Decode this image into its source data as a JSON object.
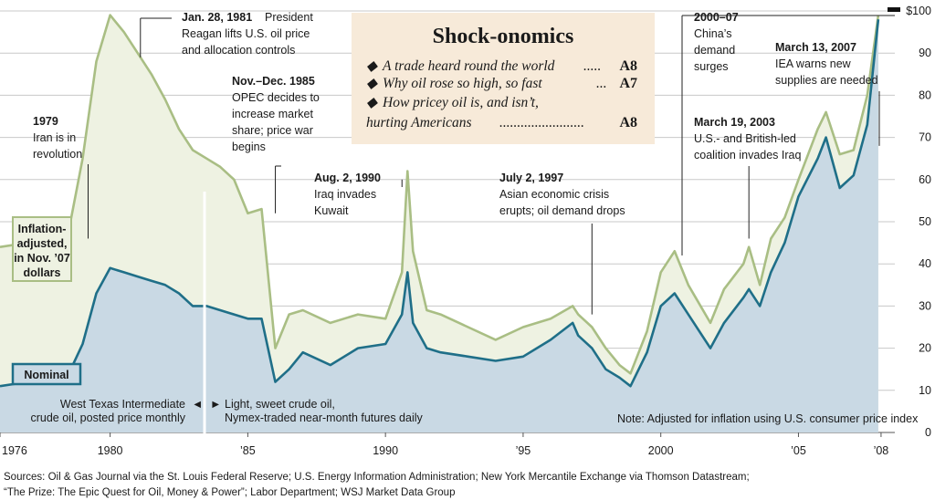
{
  "colors": {
    "nominal_fill": "#c9d9e4",
    "nominal_line": "#1f6f88",
    "inflation_fill": "#eef2e2",
    "inflation_line": "#a9be84",
    "box_bg": "#f7ead9",
    "grid": "#c8c8c8"
  },
  "sidebar_box": {
    "title": "Shock-onomics",
    "items": [
      {
        "bullet": "◆",
        "text": "A trade heard round the world",
        "dots": ".....",
        "page": "A8"
      },
      {
        "bullet": "◆",
        "text": "Why oil rose so high, so fast",
        "dots": "...",
        "page": "A7"
      },
      {
        "bullet": "◆",
        "text": "How pricey oil is, and isn’t,",
        "dots": "",
        "page": ""
      },
      {
        "bullet": "",
        "text": "hurting Americans",
        "dots": "........................",
        "page": "A8"
      }
    ]
  },
  "chart_data": {
    "type": "line",
    "title": "",
    "xlabel": "",
    "ylabel": "",
    "ylim": [
      0,
      100
    ],
    "xlim": [
      1976,
      2008.5
    ],
    "grid": true,
    "y_ticks": [
      "0",
      "10",
      "20",
      "30",
      "40",
      "50",
      "60",
      "70",
      "80",
      "90",
      "$100"
    ],
    "x_ticks": [
      "1976",
      "1980",
      "’85",
      "1990",
      "’95",
      "2000",
      "’05",
      "’08"
    ],
    "series": [
      {
        "name": "Inflation-adjusted, in Nov. ’07 dollars",
        "x": [
          1976,
          1977,
          1978,
          1978.5,
          1979,
          1979.5,
          1980,
          1980.5,
          1981,
          1981.5,
          1982,
          1982.5,
          1983,
          1983.5,
          1984,
          1984.5,
          1985,
          1985.5,
          1986,
          1986.5,
          1987,
          1988,
          1989,
          1990,
          1990.6,
          1990.8,
          1991,
          1991.5,
          1992,
          1993,
          1994,
          1995,
          1996,
          1996.8,
          1997,
          1997.5,
          1998,
          1998.5,
          1998.9,
          1999.5,
          2000,
          2000.5,
          2001,
          2001.8,
          2002.3,
          2003,
          2003.2,
          2003.6,
          2004,
          2004.5,
          2005,
          2005.7,
          2006,
          2006.5,
          2007,
          2007.5,
          2007.9
        ],
        "values": [
          44,
          45,
          45,
          48,
          65,
          88,
          99,
          95,
          90,
          85,
          79,
          72,
          67,
          65,
          63,
          60,
          52,
          53,
          20,
          28,
          29,
          26,
          28,
          27,
          38,
          62,
          43,
          29,
          28,
          25,
          22,
          25,
          27,
          30,
          28,
          25,
          20,
          16,
          14,
          24,
          38,
          43,
          35,
          26,
          34,
          40,
          44,
          35,
          46,
          51,
          60,
          72,
          76,
          66,
          67,
          80,
          99
        ]
      },
      {
        "name": "Nominal",
        "x": [
          1976,
          1977,
          1978,
          1978.5,
          1979,
          1979.5,
          1980,
          1980.5,
          1981,
          1981.5,
          1982,
          1982.5,
          1983,
          1983.5,
          1984,
          1984.5,
          1985,
          1985.5,
          1986,
          1986.5,
          1987,
          1988,
          1989,
          1990,
          1990.6,
          1990.8,
          1991,
          1991.5,
          1992,
          1993,
          1994,
          1995,
          1996,
          1996.8,
          1997,
          1997.5,
          1998,
          1998.5,
          1998.9,
          1999.5,
          2000,
          2000.5,
          2001,
          2001.8,
          2002.3,
          2003,
          2003.2,
          2003.6,
          2004,
          2004.5,
          2005,
          2005.7,
          2006,
          2006.5,
          2007,
          2007.5,
          2007.9
        ],
        "values": [
          11,
          12,
          13,
          14,
          21,
          33,
          39,
          38,
          37,
          36,
          35,
          33,
          30,
          30,
          29,
          28,
          27,
          27,
          12,
          15,
          19,
          16,
          20,
          21,
          28,
          38,
          26,
          20,
          19,
          18,
          17,
          18,
          22,
          26,
          23,
          20,
          15,
          13,
          11,
          19,
          30,
          33,
          28,
          20,
          26,
          32,
          34,
          30,
          38,
          45,
          56,
          65,
          70,
          58,
          61,
          73,
          98
        ]
      }
    ]
  },
  "labels": {
    "inflation_box": [
      "Inflation-",
      "adjusted,",
      "in Nov. ’07",
      "dollars"
    ],
    "nominal_box": "Nominal",
    "note": "Note: Adjusted for inflation using U.S. consumer price index",
    "wti_left": [
      "West Texas Intermediate",
      "crude oil, posted price monthly"
    ],
    "wti_right": [
      "Light, sweet crude oil,",
      "Nymex-traded near-month futures daily"
    ],
    "arrow_left": "◄",
    "arrow_right": "►"
  },
  "annotations": [
    {
      "date": "1979",
      "lines": [
        "Iran is in",
        "revolution"
      ]
    },
    {
      "date": "Jan. 28, 1981",
      "lines": [
        "President",
        "Reagan lifts U.S. oil price",
        "and allocation controls"
      ]
    },
    {
      "date": "Nov.–Dec. 1985",
      "lines": [
        "OPEC decides to",
        "increase market",
        "share; price war",
        "begins"
      ]
    },
    {
      "date": "Aug. 2, 1990",
      "lines": [
        "Iraq invades",
        "Kuwait"
      ]
    },
    {
      "date": "July 2, 1997",
      "lines": [
        "Asian economic crisis",
        "erupts; oil demand drops"
      ]
    },
    {
      "date": "2000–07",
      "lines": [
        "China’s",
        "demand",
        "surges"
      ]
    },
    {
      "date": "March 19, 2003",
      "lines": [
        "U.S.- and British-led",
        "coalition invades Iraq"
      ]
    },
    {
      "date": "March 13, 2007",
      "lines": [
        "IEA warns new",
        "supplies are needed"
      ]
    }
  ],
  "sources": [
    "Sources: Oil & Gas Journal via the St. Louis Federal Reserve; U.S. Energy Information Administration; New York Mercantile Exchange via Thomson Datastream;",
    "“The Prize: The Epic Quest for Oil, Money & Power”; Labor Department; WSJ Market Data Group"
  ]
}
